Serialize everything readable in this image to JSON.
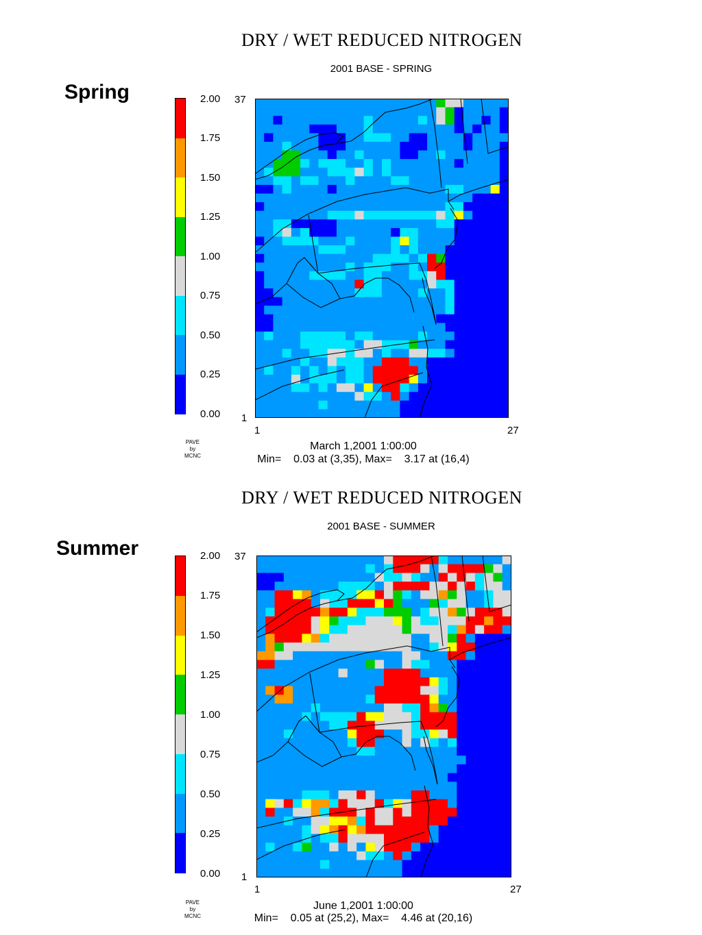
{
  "colors": {
    "bins": [
      "#0000ff",
      "#0099ff",
      "#00e5ff",
      "#d9d9d9",
      "#00cc00",
      "#ffff00",
      "#ff9900",
      "#ff0000"
    ],
    "borders": "#000000",
    "ocean": "#0000ff"
  },
  "stamp": {
    "line1": "PAVE",
    "line2": "by",
    "line3": "MCNC"
  },
  "panels": [
    {
      "season_label": "Spring",
      "title": "DRY / WET REDUCED NITROGEN",
      "subtitle": "2001 BASE - SPRING",
      "colorbar_labels": [
        "2.00",
        "1.75",
        "1.50",
        "1.25",
        "1.00",
        "0.75",
        "0.50",
        "0.25",
        "0.00"
      ],
      "y_top": "37",
      "y_bottom": "1",
      "x_left": "1",
      "x_right": "27",
      "date": "March 1,2001 1:00:00",
      "minmax": "Min=    0.03 at (3,35), Max=    3.17 at (16,4)"
    },
    {
      "season_label": "Summer",
      "title": "DRY / WET REDUCED NITROGEN",
      "subtitle": "2001 BASE - SUMMER",
      "colorbar_labels": [
        "2.00",
        "1.75",
        "1.50",
        "1.25",
        "1.00",
        "0.75",
        "0.50",
        "0.25",
        "0.00"
      ],
      "y_top": "37",
      "y_bottom": "1",
      "x_left": "1",
      "x_right": "27",
      "date": "June 1,2001 1:00:00",
      "minmax": "Min=    0.05 at (25,2), Max=    4.46 at (20,16)"
    }
  ],
  "chart_data": [
    {
      "type": "heatmap",
      "title": "DRY / WET REDUCED NITROGEN",
      "subtitle": "2001 BASE - SPRING",
      "x_range": [
        1,
        27
      ],
      "y_range": [
        1,
        37
      ],
      "color_scale_range": [
        0.0,
        2.0
      ],
      "color_bins": [
        0.0,
        0.25,
        0.5,
        0.75,
        1.0,
        1.25,
        1.5,
        1.75,
        2.0
      ],
      "min": {
        "value": 0.03,
        "x": 3,
        "y": 35
      },
      "max": {
        "value": 3.17,
        "x": 16,
        "y": 4
      },
      "grid_rows_top_to_bottom": [
        "1111111111111111111143311111",
        "1111111111111111111134011110",
        "1101111111112111112134011010",
        "1111110001112111111111010110",
        "1011111000112221100111101111",
        "1112111000111111000111101110",
        "1114411101121111001121111110",
        "1144421222112121111111011110",
        "1244411122232121111111111110",
        "1122122111211112211111111110",
        "0012111101111111111112211150",
        "1111111111111111111111110000",
        "0111111111111111111112200000",
        "1111111122232222222232510000",
        "1122000001111111111122000000",
        "1123120001111110221111000000",
        "0112222111211112521111000000",
        "1111111222111112121110000000",
        "0111111111111222212740000000",
        "1111111111212221121770000000",
        "0111112222112211122370000000",
        "0111111111172211111322000000",
        "0011111111122211112112000000",
        "0001111111111111111112000000",
        "0111111111111111111112000000",
        "0011111111111111111100000000",
        "0011111111111111111110000000",
        "1211122222122111112111000000",
        "1111122222213322241110000000",
        "1112112233233121133221000000",
        "1111121132221177711000000000",
        "1211212121221777771000000000",
        "1111312221221777751000000000",
        "1111221213315177210000000000",
        "1111111111132217100000000000",
        "1111111211111111000000000000",
        "1111111111111111000000000000"
      ]
    },
    {
      "type": "heatmap",
      "title": "DRY / WET REDUCED NITROGEN",
      "subtitle": "2001 BASE - SUMMER",
      "x_range": [
        1,
        27
      ],
      "y_range": [
        1,
        37
      ],
      "color_scale_range": [
        0.0,
        2.0
      ],
      "color_bins": [
        0.0,
        0.25,
        0.5,
        0.75,
        1.0,
        1.25,
        1.5,
        1.75,
        2.0
      ],
      "min": {
        "value": 0.05,
        "x": 25,
        "y": 2
      },
      "max": {
        "value": 4.46,
        "x": 20,
        "y": 16
      },
      "grid_rows_top_to_bottom": [
        "1111111111111137777721111113",
        "1111111111112127773137777431",
        "0001111111111322321173732341",
        "0011111112222137777337372331",
        "1177561222255734213364311233",
        "1177771322777574111423311233",
        "1277777677522244412336437773",
        "1777773542223335432233377677",
        "1777773522333333433332673771",
        "1677756233333333311334710000",
        "1643333333333333311235770000",
        "6633111111111111331117710000",
        "7711111111114311322111000000",
        "1111111113111177771111000000",
        "1111111111111177777521000000",
        "1676111111111777773321000000",
        "1166111111112777777511000000",
        "1111112111111133227641000000",
        "1111121222275533327777000000",
        "1111111122777333327777000000",
        "1112111111577711322537000000",
        "1111111111277111313212000000",
        "1111111111122111111111000000",
        "1111111111111111111111100000",
        "1111111111111111111111000000",
        "1111111111111111111110000000",
        "1111111111111111111111000000",
        "1111122213373111177111000000",
        "1537256627333725377771000000",
        "1711336277737337377777000000",
        "1112113355627337777770000000",
        "1111123567567777777100000000",
        "1111121227333377777100000000",
        "1211241131315377710000000000",
        "1111111111132217100000000000",
        "1111111211111111000000000000",
        "1111111111111111000000000000"
      ]
    }
  ]
}
